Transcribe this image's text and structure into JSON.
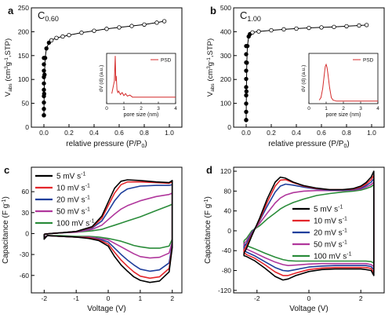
{
  "colors": {
    "black": "#000000",
    "red": "#e4262b",
    "blue": "#1f3f9c",
    "magenta": "#b0379c",
    "green": "#2a8c3a",
    "psd": "#d42b2b"
  },
  "chart_data": [
    {
      "id": "a",
      "panel_letter": "a",
      "sample_label": "C",
      "sample_sub": "0.60",
      "type": "line",
      "xlabel": "relative pressure (P/P",
      "xlabel_sub": "0",
      "ylabel": "V_abs (cm3g-1,STP)",
      "xlim": [
        -0.1,
        1.1
      ],
      "ylim": [
        0,
        250
      ],
      "xticks": [
        0.0,
        0.2,
        0.4,
        0.6,
        0.8,
        1.0
      ],
      "xtick_labels": [
        "0.0",
        "0.2",
        "0.4",
        "0.6",
        "0.8",
        "1.0"
      ],
      "yticks": [
        0,
        50,
        100,
        150,
        200,
        250
      ],
      "ytick_labels": [
        "0",
        "50",
        "100",
        "150",
        "200",
        "250"
      ],
      "series": [
        {
          "x": [
            0.0,
            0.002,
            0.005,
            0.01,
            0.02,
            0.04,
            0.06,
            0.1,
            0.15,
            0.2,
            0.3,
            0.4,
            0.5,
            0.6,
            0.7,
            0.8,
            0.9,
            0.96
          ],
          "y": [
            25,
            70,
            110,
            145,
            165,
            177,
            182,
            187,
            190,
            193,
            198,
            202,
            206,
            209,
            212,
            215,
            219,
            222
          ]
        }
      ],
      "inset": {
        "type": "line",
        "xlabel": "pore size (nm)",
        "ylabel": "dV (d) (a.u.)",
        "legend": "PSD",
        "xlim": [
          0,
          4
        ],
        "ylim": [
          0,
          1
        ],
        "xticks": [
          0,
          1,
          2,
          3,
          4
        ],
        "xtick_labels": [
          "0",
          "1",
          "2",
          "3",
          "4"
        ],
        "x": [
          0.3,
          0.45,
          0.5,
          0.53,
          0.56,
          0.6,
          0.65,
          0.7,
          0.8,
          0.9,
          1.0,
          1.1,
          1.2,
          1.35,
          1.5,
          2.0,
          3.0,
          4.0
        ],
        "y": [
          0.2,
          0.45,
          0.95,
          0.45,
          0.55,
          0.28,
          0.22,
          0.25,
          0.18,
          0.22,
          0.16,
          0.2,
          0.15,
          0.17,
          0.13,
          0.13,
          0.13,
          0.13
        ]
      }
    },
    {
      "id": "b",
      "panel_letter": "b",
      "sample_label": "C",
      "sample_sub": "1.00",
      "type": "line",
      "xlabel": "relative pressure (P/P",
      "xlabel_sub": "0",
      "ylabel": "V_abs (cm3g-1,STP)",
      "xlim": [
        -0.1,
        1.1
      ],
      "ylim": [
        0,
        500
      ],
      "xticks": [
        0.0,
        0.2,
        0.4,
        0.6,
        0.8,
        1.0
      ],
      "xtick_labels": [
        "0.0",
        "0.2",
        "0.4",
        "0.6",
        "0.8",
        "1.0"
      ],
      "yticks": [
        0,
        100,
        200,
        300,
        400,
        500
      ],
      "ytick_labels": [
        "0",
        "100",
        "200",
        "300",
        "400",
        "500"
      ],
      "series": [
        {
          "x": [
            0.0,
            0.002,
            0.005,
            0.01,
            0.02,
            0.03,
            0.05,
            0.1,
            0.2,
            0.3,
            0.4,
            0.5,
            0.6,
            0.7,
            0.8,
            0.9,
            0.96
          ],
          "y": [
            30,
            150,
            270,
            340,
            380,
            390,
            397,
            401,
            406,
            410,
            413,
            416,
            418,
            420,
            423,
            426,
            428
          ]
        }
      ],
      "inset": {
        "type": "line",
        "xlabel": "pore size (nm)",
        "ylabel": "dV (d) (a.u.)",
        "legend": "PSD",
        "xlim": [
          0,
          4
        ],
        "ylim": [
          0,
          1
        ],
        "xticks": [
          0,
          1,
          2,
          3,
          4
        ],
        "xtick_labels": [
          "0",
          "1",
          "2",
          "3",
          "4"
        ],
        "x": [
          0.6,
          0.7,
          0.8,
          0.9,
          0.95,
          1.0,
          1.05,
          1.1,
          1.2,
          1.3,
          1.4,
          1.6,
          2.0,
          3.0,
          4.0
        ],
        "y": [
          0.07,
          0.12,
          0.3,
          0.6,
          0.74,
          0.78,
          0.72,
          0.6,
          0.32,
          0.12,
          0.07,
          0.05,
          0.05,
          0.05,
          0.05
        ]
      }
    },
    {
      "id": "c",
      "panel_letter": "c",
      "type": "line",
      "xlabel": "Voltage (V)",
      "ylabel": "Capacitance (F g-1)",
      "xlim": [
        -2.4,
        2.3
      ],
      "ylim": [
        -85,
        95
      ],
      "xticks": [
        -2,
        -1,
        0,
        1,
        2
      ],
      "xtick_labels": [
        "-2",
        "-1",
        "0",
        "1",
        "2"
      ],
      "yticks": [
        -60,
        -30,
        0,
        30,
        60
      ],
      "ytick_labels": [
        "-60",
        "-30",
        "0",
        "30",
        "60"
      ],
      "legend": [
        "5 mV s",
        "10 mV s",
        "20 mV s",
        "50 mV s",
        "100 mV s"
      ],
      "legend_sup": "-1",
      "series": [
        {
          "name": "5 mV s-1",
          "color": "black",
          "x": [
            -2.0,
            -1.8,
            -1.5,
            -1.0,
            -0.5,
            -0.2,
            0.0,
            0.2,
            0.4,
            0.6,
            1.0,
            1.5,
            1.9,
            2.0,
            2.0,
            1.9,
            1.6,
            1.3,
            1.0,
            0.8,
            0.6,
            0.4,
            0.2,
            0.0,
            -0.3,
            -0.6,
            -1.0,
            -1.5,
            -1.9,
            -2.0,
            -2.0
          ],
          "y": [
            -1,
            0,
            1,
            3,
            10,
            25,
            45,
            65,
            75,
            77,
            76,
            74,
            73,
            76,
            -20,
            -55,
            -68,
            -70,
            -67,
            -62,
            -54,
            -45,
            -33,
            -18,
            -10,
            -7,
            -5,
            -4,
            -3,
            -8,
            -1
          ]
        },
        {
          "name": "10 mV s-1",
          "color": "red",
          "x": [
            -2.0,
            -1.8,
            -1.5,
            -1.0,
            -0.5,
            -0.2,
            0.0,
            0.2,
            0.4,
            0.6,
            1.0,
            1.5,
            1.9,
            2.0,
            2.0,
            1.9,
            1.6,
            1.3,
            1.0,
            0.8,
            0.6,
            0.4,
            0.2,
            0.0,
            -0.3,
            -0.6,
            -1.0,
            -1.5,
            -1.9,
            -2.0,
            -2.0
          ],
          "y": [
            -1,
            0,
            1,
            3,
            9,
            22,
            40,
            58,
            70,
            74,
            74,
            73,
            72,
            74,
            -18,
            -50,
            -62,
            -64,
            -61,
            -55,
            -47,
            -38,
            -27,
            -15,
            -9,
            -6,
            -5,
            -4,
            -3,
            -7,
            -1
          ]
        },
        {
          "name": "20 mV s-1",
          "color": "blue",
          "x": [
            -2.0,
            -1.8,
            -1.5,
            -1.0,
            -0.5,
            -0.2,
            0.0,
            0.2,
            0.4,
            0.6,
            1.0,
            1.5,
            1.9,
            2.0,
            2.0,
            1.9,
            1.6,
            1.3,
            1.0,
            0.8,
            0.6,
            0.4,
            0.2,
            0.0,
            -0.3,
            -0.6,
            -1.0,
            -1.5,
            -1.9,
            -2.0,
            -2.0
          ],
          "y": [
            -1,
            0,
            1,
            3,
            8,
            18,
            32,
            47,
            58,
            64,
            68,
            69,
            69,
            70,
            -15,
            -42,
            -52,
            -54,
            -51,
            -45,
            -38,
            -30,
            -21,
            -12,
            -8,
            -6,
            -5,
            -4,
            -3,
            -6,
            -1
          ]
        },
        {
          "name": "50 mV s-1",
          "color": "magenta",
          "x": [
            -2.0,
            -1.8,
            -1.5,
            -1.0,
            -0.5,
            -0.2,
            0.0,
            0.2,
            0.4,
            0.6,
            1.0,
            1.5,
            1.9,
            2.0,
            2.0,
            1.9,
            1.6,
            1.3,
            1.0,
            0.8,
            0.6,
            0.4,
            0.2,
            0.0,
            -0.3,
            -0.6,
            -1.0,
            -1.5,
            -1.9,
            -2.0,
            -2.0
          ],
          "y": [
            -1,
            0,
            1,
            2,
            6,
            12,
            20,
            28,
            35,
            40,
            47,
            53,
            56,
            58,
            -12,
            -28,
            -34,
            -35,
            -33,
            -29,
            -24,
            -19,
            -14,
            -9,
            -7,
            -5,
            -5,
            -4,
            -3,
            -5,
            -1
          ]
        },
        {
          "name": "100 mV s-1",
          "color": "green",
          "x": [
            -2.0,
            -1.8,
            -1.5,
            -1.0,
            -0.5,
            -0.2,
            0.0,
            0.2,
            0.4,
            0.6,
            1.0,
            1.5,
            1.9,
            2.0,
            2.0,
            1.9,
            1.6,
            1.3,
            1.0,
            0.8,
            0.6,
            0.4,
            0.2,
            0.0,
            -0.3,
            -0.6,
            -1.0,
            -1.5,
            -1.9,
            -2.0,
            -2.0
          ],
          "y": [
            -1,
            0,
            1,
            2,
            4,
            6,
            9,
            12,
            15,
            18,
            24,
            33,
            40,
            42,
            -8,
            -18,
            -21,
            -21,
            -19,
            -17,
            -14,
            -11,
            -9,
            -7,
            -5,
            -4,
            -4,
            -3,
            -3,
            -4,
            -1
          ]
        }
      ]
    },
    {
      "id": "d",
      "panel_letter": "d",
      "type": "line",
      "xlabel": "Voltage (V)",
      "ylabel": "Capacitance (F g-1)",
      "xlim": [
        -2.9,
        2.9
      ],
      "ylim": [
        -125,
        128
      ],
      "xticks": [
        -2,
        0,
        2
      ],
      "xtick_labels": [
        "-2",
        "0",
        "2"
      ],
      "yticks": [
        -120,
        -80,
        -40,
        0,
        40,
        80,
        120
      ],
      "ytick_labels": [
        "-120",
        "-80",
        "-40",
        "0",
        "40",
        "80",
        "120"
      ],
      "legend": [
        "5 mV s",
        "10 mV s",
        "20 mV s",
        "50 mV s",
        "100 mV s"
      ],
      "legend_sup": "-1",
      "series": [
        {
          "name": "5 mV s-1",
          "color": "black",
          "x": [
            -2.5,
            -2.4,
            -2.2,
            -1.9,
            -1.6,
            -1.3,
            -1.1,
            -0.9,
            -0.6,
            -0.2,
            0.3,
            0.8,
            1.3,
            1.7,
            2.0,
            2.2,
            2.4,
            2.5,
            2.5,
            2.4,
            2.2,
            2.0,
            1.5,
            1.0,
            0.5,
            0.0,
            -0.5,
            -0.8,
            -1.0,
            -1.3,
            -1.7,
            -2.1,
            -2.4,
            -2.5,
            -2.5
          ],
          "y": [
            -45,
            -35,
            -10,
            25,
            65,
            98,
            108,
            106,
            98,
            91,
            86,
            83,
            83,
            85,
            90,
            97,
            108,
            120,
            -90,
            -80,
            -78,
            -77,
            -77,
            -77,
            -78,
            -82,
            -90,
            -97,
            -99,
            -92,
            -75,
            -60,
            -52,
            -50,
            -45
          ]
        },
        {
          "name": "10 mV s-1",
          "color": "red",
          "x": [
            -2.5,
            -2.4,
            -2.2,
            -1.9,
            -1.6,
            -1.3,
            -1.1,
            -0.9,
            -0.6,
            -0.2,
            0.3,
            0.8,
            1.3,
            1.7,
            2.0,
            2.2,
            2.4,
            2.5,
            2.5,
            2.4,
            2.2,
            2.0,
            1.5,
            1.0,
            0.5,
            0.0,
            -0.5,
            -0.8,
            -1.0,
            -1.3,
            -1.7,
            -2.1,
            -2.4,
            -2.5,
            -2.5
          ],
          "y": [
            -38,
            -30,
            -8,
            22,
            58,
            90,
            102,
            103,
            97,
            90,
            85,
            83,
            83,
            84,
            88,
            94,
            103,
            112,
            -84,
            -76,
            -74,
            -74,
            -74,
            -74,
            -75,
            -78,
            -85,
            -90,
            -90,
            -83,
            -68,
            -55,
            -48,
            -44,
            -38
          ]
        },
        {
          "name": "20 mV s-1",
          "color": "blue",
          "x": [
            -2.5,
            -2.4,
            -2.2,
            -1.9,
            -1.6,
            -1.3,
            -1.1,
            -0.9,
            -0.6,
            -0.2,
            0.3,
            0.8,
            1.3,
            1.7,
            2.0,
            2.2,
            2.4,
            2.5,
            2.5,
            2.4,
            2.2,
            2.0,
            1.5,
            1.0,
            0.5,
            0.0,
            -0.5,
            -0.8,
            -1.0,
            -1.3,
            -1.7,
            -2.1,
            -2.4,
            -2.5,
            -2.5
          ],
          "y": [
            -32,
            -25,
            -5,
            20,
            50,
            78,
            90,
            94,
            92,
            88,
            84,
            82,
            82,
            83,
            86,
            91,
            98,
            105,
            -78,
            -72,
            -70,
            -70,
            -70,
            -70,
            -71,
            -73,
            -78,
            -81,
            -80,
            -74,
            -62,
            -50,
            -43,
            -39,
            -32
          ]
        },
        {
          "name": "50 mV s-1",
          "color": "magenta",
          "x": [
            -2.5,
            -2.4,
            -2.2,
            -1.9,
            -1.6,
            -1.3,
            -1.1,
            -0.9,
            -0.6,
            -0.2,
            0.3,
            0.8,
            1.3,
            1.7,
            2.0,
            2.2,
            2.4,
            2.5,
            2.5,
            2.4,
            2.2,
            2.0,
            1.5,
            1.0,
            0.5,
            0.0,
            -0.5,
            -0.8,
            -1.0,
            -1.3,
            -1.7,
            -2.1,
            -2.4,
            -2.5,
            -2.5
          ],
          "y": [
            -26,
            -20,
            -3,
            15,
            36,
            56,
            66,
            72,
            77,
            80,
            81,
            81,
            81,
            82,
            84,
            88,
            93,
            98,
            -72,
            -68,
            -66,
            -66,
            -66,
            -66,
            -66,
            -67,
            -69,
            -70,
            -68,
            -63,
            -54,
            -44,
            -37,
            -33,
            -26
          ]
        },
        {
          "name": "100 mV s-1",
          "color": "green",
          "x": [
            -2.5,
            -2.4,
            -2.2,
            -1.9,
            -1.6,
            -1.3,
            -1.1,
            -0.9,
            -0.6,
            -0.2,
            0.3,
            0.8,
            1.3,
            1.7,
            2.0,
            2.2,
            2.4,
            2.5,
            2.5,
            2.4,
            2.2,
            2.0,
            1.5,
            1.0,
            0.5,
            0.0,
            -0.5,
            -0.8,
            -1.0,
            -1.3,
            -1.7,
            -2.1,
            -2.4,
            -2.5,
            -2.5
          ],
          "y": [
            -20,
            -15,
            0,
            10,
            24,
            36,
            44,
            50,
            57,
            64,
            71,
            75,
            78,
            80,
            82,
            85,
            89,
            93,
            -65,
            -62,
            -61,
            -61,
            -61,
            -61,
            -61,
            -61,
            -61,
            -60,
            -58,
            -53,
            -45,
            -36,
            -30,
            -26,
            -20
          ]
        }
      ]
    }
  ]
}
